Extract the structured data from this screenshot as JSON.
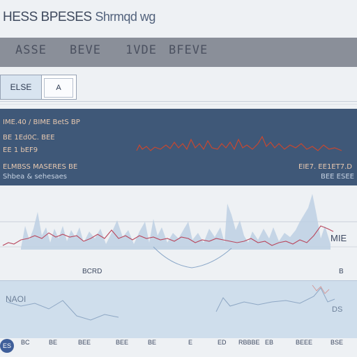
{
  "header": {
    "title": "HESS BPESES",
    "subtitle": "Shrmqd wg"
  },
  "toolbar": {
    "items": [
      "ASSE",
      "BEVE",
      "1VDE",
      "BFEVE"
    ]
  },
  "controls": {
    "primary_label": "ELSE",
    "secondary_label": "A"
  },
  "summary_panel": {
    "line1": "IME.40 / BIME BetS BP",
    "line2": "BE 1Ed0C. BEE",
    "line3": "EE 1 bEF9",
    "line4": "ELMBSS MASERES BE",
    "line5": "Shbea & sehesaes",
    "value_right": "EIE7. EE1ET7.D",
    "value_right2": "BEE ESEE"
  },
  "main_chart": {
    "right_label": "MIE",
    "bottom_label": "BCRD",
    "corner_label": "B"
  },
  "bottom_chart": {
    "left_label": "NAOI",
    "right_label": "DS"
  },
  "footer": {
    "badge": "ES",
    "ticks": [
      "BC",
      "BE",
      "BEE",
      "BEE",
      "BE",
      "E",
      "ED",
      "RBBBE",
      "EB",
      "BEEE",
      "BSE"
    ]
  },
  "colors": {
    "accent_red": "#c8472f",
    "series_blue": "#9fbcd8",
    "panel_dark": "#3f5878"
  }
}
